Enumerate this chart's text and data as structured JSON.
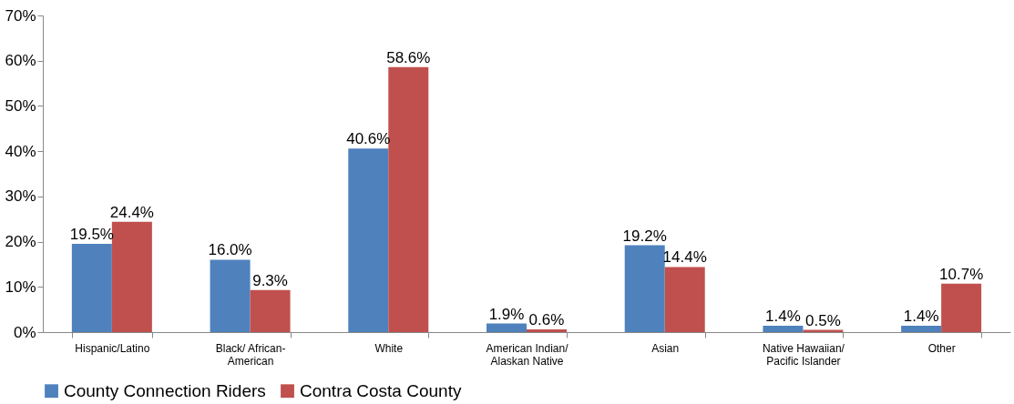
{
  "chart_data": {
    "type": "bar",
    "categories": [
      "Hispanic/Latino",
      "Black/ African-American",
      "White",
      "American Indian/ Alaskan Native",
      "Asian",
      "Native Hawaiian/ Pacific Islander",
      "Other"
    ],
    "series": [
      {
        "name": "County Connection Riders",
        "color": "#4f81bd",
        "values": [
          19.5,
          16.0,
          40.6,
          1.9,
          19.2,
          1.4,
          1.4
        ],
        "value_labels": [
          "19.5%",
          "16.0%",
          "40.6%",
          "1.9%",
          "19.2%",
          "1.4%",
          "1.4%"
        ]
      },
      {
        "name": "Contra Costa County",
        "color": "#c0504d",
        "values": [
          24.4,
          9.3,
          58.6,
          0.6,
          14.4,
          0.5,
          10.7
        ],
        "value_labels": [
          "24.4%",
          "9.3%",
          "58.6%",
          "0.6%",
          "14.4%",
          "0.5%",
          "10.7%"
        ]
      }
    ],
    "ylim": [
      0,
      70
    ],
    "yticks": [
      {
        "value": 0,
        "label": "0%"
      },
      {
        "value": 10,
        "label": "10%"
      },
      {
        "value": 20,
        "label": "20%"
      },
      {
        "value": 30,
        "label": "30%"
      },
      {
        "value": 40,
        "label": "40%"
      },
      {
        "value": 50,
        "label": "50%"
      },
      {
        "value": 60,
        "label": "60%"
      },
      {
        "value": 70,
        "label": "70%"
      }
    ],
    "grid": false,
    "legend": "bottom"
  }
}
